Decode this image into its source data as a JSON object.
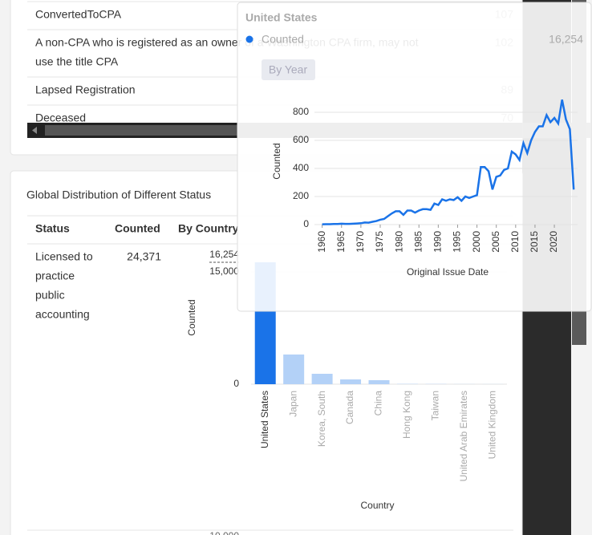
{
  "status_list": {
    "rows": [
      {
        "label": [
          "ConvertedToCPA"
        ],
        "value": "107"
      },
      {
        "label": [
          "A non-CPA who is registered as an owner of a Washington CPA firm, may not",
          "use the title CPA"
        ],
        "value": "102"
      },
      {
        "label": [
          "Lapsed Registration"
        ],
        "value": "89"
      },
      {
        "label": [
          "Deceased"
        ],
        "value": "70"
      }
    ],
    "side_value": "16,254"
  },
  "distribution": {
    "title": "Global Distribution of Different Status",
    "headers": [
      "Status",
      "Counted",
      "By Country"
    ],
    "rows": [
      {
        "status": [
          "Licensed to",
          "practice",
          "public",
          "accounting"
        ],
        "counted": "24,371"
      }
    ],
    "next_row_tick": "10,000",
    "chart": {
      "type": "bar",
      "y_label": "Counted",
      "x_label": "Country",
      "categories": [
        "United States",
        "Japan",
        "Korea, South",
        "Canada",
        "China",
        "Hong Kong",
        "Taiwan",
        "United Arab Emirates",
        "United Kingdom"
      ],
      "values": [
        16254,
        3960,
        1390,
        640,
        540,
        40,
        30,
        15,
        10
      ],
      "colors": [
        "#1a73e8",
        "#b3d1f7",
        "#b3d1f7",
        "#b3d1f7",
        "#b3d1f7",
        "#b3d1f7",
        "#b3d1f7",
        "#b3d1f7",
        "#b3d1f7"
      ],
      "ylim": [
        0,
        16254
      ],
      "yticks": [
        0,
        {
          "value": 15000,
          "label": "15,000"
        },
        {
          "value": 16254,
          "label": "16,254"
        }
      ],
      "grid": true
    }
  },
  "tooltip": {
    "title": "United States",
    "legend": "Counted",
    "button": "By Year",
    "chart": {
      "type": "line",
      "y_label": "Counted",
      "x_label": "Original Issue Date",
      "color": "#1a73e8",
      "x": [
        1960,
        1961,
        1962,
        1963,
        1964,
        1965,
        1966,
        1967,
        1968,
        1969,
        1970,
        1971,
        1972,
        1973,
        1974,
        1975,
        1976,
        1977,
        1978,
        1979,
        1980,
        1981,
        1982,
        1983,
        1984,
        1985,
        1986,
        1987,
        1988,
        1989,
        1990,
        1991,
        1992,
        1993,
        1994,
        1995,
        1996,
        1997,
        1998,
        1999,
        2000,
        2001,
        2002,
        2003,
        2004,
        2005,
        2006,
        2007,
        2008,
        2009,
        2010,
        2011,
        2012,
        2013,
        2014,
        2015,
        2016,
        2017,
        2018,
        2019,
        2020,
        2021,
        2022,
        2023,
        2024,
        2025
      ],
      "values": [
        2,
        3,
        3,
        4,
        4,
        6,
        5,
        5,
        6,
        8,
        10,
        15,
        14,
        20,
        25,
        35,
        40,
        60,
        80,
        95,
        95,
        70,
        100,
        100,
        85,
        100,
        110,
        110,
        105,
        150,
        140,
        180,
        170,
        180,
        175,
        195,
        170,
        200,
        190,
        200,
        210,
        410,
        410,
        380,
        250,
        340,
        350,
        390,
        400,
        520,
        500,
        460,
        580,
        510,
        600,
        660,
        700,
        700,
        780,
        730,
        760,
        720,
        890,
        750,
        680,
        250
      ],
      "xlim": [
        1958,
        2026
      ],
      "ylim": [
        0,
        800
      ],
      "xticks": [
        1960,
        1965,
        1970,
        1975,
        1980,
        1985,
        1990,
        1995,
        2000,
        2005,
        2010,
        2015,
        2020
      ],
      "yticks": [
        0,
        200,
        400,
        600,
        800
      ],
      "grid": true
    }
  }
}
